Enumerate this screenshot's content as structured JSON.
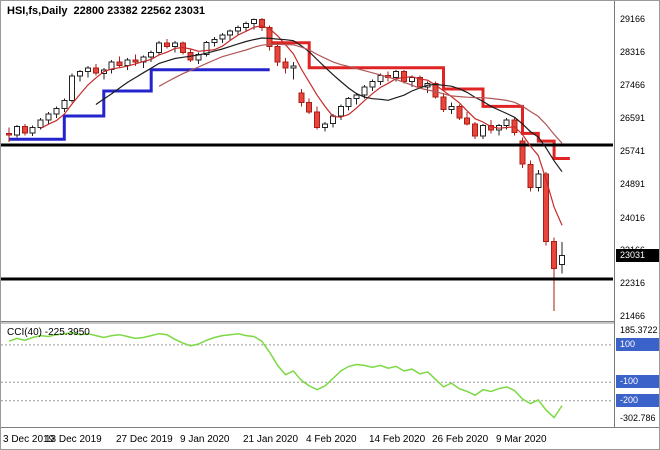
{
  "header": {
    "symbol": "HSI,fs,Daily",
    "ohlc": "22800 23382 22562 23031"
  },
  "price_axis": {
    "labels": [
      29166,
      28316,
      27466,
      26591,
      25741,
      24891,
      24016,
      23166,
      22316,
      21466
    ],
    "current_price": "23031"
  },
  "time_axis": {
    "labels": [
      {
        "i": 0,
        "text": "3 Dec 2019"
      },
      {
        "i": 8,
        "text": "13 Dec 2019"
      },
      {
        "i": 17,
        "text": "27 Dec 2019"
      },
      {
        "i": 25,
        "text": "9 Jan 2020"
      },
      {
        "i": 33,
        "text": "21 Jan 2020"
      },
      {
        "i": 41,
        "text": "4 Feb 2020"
      },
      {
        "i": 49,
        "text": "14 Feb 2020"
      },
      {
        "i": 57,
        "text": "26 Feb 2020"
      },
      {
        "i": 65,
        "text": "9 Mar 2020"
      }
    ]
  },
  "cci": {
    "label": "CCI(40) -225.3950",
    "max": 185.3722,
    "min": -302.786,
    "max_label": "185.3722",
    "min_label": "-302.786",
    "levels": [
      {
        "value": 100,
        "label": "100"
      },
      {
        "value": -100,
        "label": "-100"
      },
      {
        "value": -200,
        "label": "-200"
      }
    ]
  },
  "chart_data": {
    "type": "candlestick",
    "title": "HSI,fs,Daily",
    "ylim": [
      21466,
      29166
    ],
    "candles": [
      [
        26200,
        26350,
        25980,
        26160
      ],
      [
        26160,
        26420,
        26100,
        26380
      ],
      [
        26380,
        26450,
        26150,
        26210
      ],
      [
        26210,
        26400,
        26130,
        26350
      ],
      [
        26350,
        26600,
        26300,
        26550
      ],
      [
        26550,
        26750,
        26450,
        26700
      ],
      [
        26700,
        26900,
        26600,
        26850
      ],
      [
        26850,
        27100,
        26750,
        27050
      ],
      [
        27050,
        27750,
        27000,
        27690
      ],
      [
        27690,
        27850,
        27550,
        27800
      ],
      [
        27800,
        27950,
        27650,
        27900
      ],
      [
        27900,
        28000,
        27700,
        27760
      ],
      [
        27760,
        27900,
        27600,
        27850
      ],
      [
        27850,
        28100,
        27750,
        28050
      ],
      [
        28050,
        28200,
        27900,
        27960
      ],
      [
        27960,
        28150,
        27850,
        28100
      ],
      [
        28100,
        28250,
        27950,
        28050
      ],
      [
        28050,
        28220,
        27900,
        28180
      ],
      [
        28180,
        28350,
        28050,
        28300
      ],
      [
        28300,
        28600,
        28250,
        28550
      ],
      [
        28550,
        28650,
        28400,
        28450
      ],
      [
        28450,
        28600,
        28300,
        28540
      ],
      [
        28540,
        28580,
        28250,
        28300
      ],
      [
        28300,
        28400,
        28050,
        28100
      ],
      [
        28100,
        28300,
        28000,
        28250
      ],
      [
        28250,
        28600,
        28200,
        28560
      ],
      [
        28560,
        28700,
        28450,
        28640
      ],
      [
        28640,
        28800,
        28550,
        28750
      ],
      [
        28750,
        28900,
        28600,
        28850
      ],
      [
        28850,
        29000,
        28750,
        28950
      ],
      [
        28950,
        29100,
        28850,
        29050
      ],
      [
        29050,
        29180,
        28900,
        29150
      ],
      [
        29150,
        29190,
        28850,
        28950
      ],
      [
        28950,
        29000,
        28350,
        28450
      ],
      [
        28450,
        28550,
        27950,
        28050
      ],
      [
        28050,
        28150,
        27750,
        27900
      ],
      [
        27900,
        28050,
        27600,
        27950
      ],
      [
        27250,
        27350,
        26900,
        27000
      ],
      [
        27000,
        27100,
        26700,
        26750
      ],
      [
        26750,
        26900,
        26300,
        26350
      ],
      [
        26350,
        26500,
        26250,
        26450
      ],
      [
        26450,
        26700,
        26350,
        26650
      ],
      [
        26650,
        26950,
        26550,
        26900
      ],
      [
        26900,
        27150,
        26800,
        27100
      ],
      [
        27100,
        27250,
        26950,
        27200
      ],
      [
        27200,
        27450,
        27100,
        27400
      ],
      [
        27400,
        27600,
        27300,
        27550
      ],
      [
        27550,
        27750,
        27450,
        27700
      ],
      [
        27700,
        27800,
        27550,
        27650
      ],
      [
        27650,
        27850,
        27550,
        27800
      ],
      [
        27800,
        27850,
        27500,
        27550
      ],
      [
        27550,
        27700,
        27400,
        27650
      ],
      [
        27650,
        27700,
        27350,
        27400
      ],
      [
        27400,
        27550,
        27250,
        27500
      ],
      [
        27500,
        27550,
        27100,
        27150
      ],
      [
        27150,
        27250,
        26750,
        26820
      ],
      [
        26820,
        27000,
        26700,
        26900
      ],
      [
        26900,
        26950,
        26550,
        26600
      ],
      [
        26600,
        26750,
        26400,
        26450
      ],
      [
        26450,
        26500,
        26050,
        26130
      ],
      [
        26130,
        26450,
        26050,
        26400
      ],
      [
        26400,
        26550,
        26200,
        26290
      ],
      [
        26290,
        26450,
        26150,
        26400
      ],
      [
        26400,
        26600,
        26300,
        26550
      ],
      [
        26550,
        26600,
        26150,
        26220
      ],
      [
        26000,
        26100,
        25300,
        25400
      ],
      [
        25400,
        25500,
        24700,
        24800
      ],
      [
        24800,
        25250,
        24700,
        25150
      ],
      [
        25150,
        25200,
        23300,
        23400
      ],
      [
        23400,
        23500,
        21600,
        22700
      ],
      [
        22800,
        23382,
        22562,
        23031
      ]
    ],
    "moving_averages": [
      {
        "period": 5,
        "color": "#c82a2a"
      },
      {
        "period": 12,
        "color": "#1c1c1c"
      },
      {
        "period": 20,
        "color": "#b05656"
      }
    ],
    "step_lines": [
      {
        "color": "#2424cc",
        "segments": [
          [
            0,
            7,
            26050
          ],
          [
            7,
            12,
            26650
          ],
          [
            12,
            18,
            27300
          ],
          [
            18,
            33,
            27850
          ]
        ]
      },
      {
        "color": "#e02424",
        "segments": [
          [
            33,
            38,
            28550
          ],
          [
            38,
            55,
            27900
          ],
          [
            55,
            60,
            27350
          ],
          [
            60,
            65,
            26900
          ],
          [
            65,
            67,
            26200
          ],
          [
            67,
            69,
            26000
          ],
          [
            69,
            71,
            25550
          ]
        ]
      }
    ],
    "support_lines": [
      25900,
      22420
    ],
    "indicator": {
      "name": "CCI",
      "period": 40,
      "current": -225.395,
      "values": [
        120,
        135,
        125,
        140,
        150,
        145,
        155,
        160,
        165,
        155,
        160,
        150,
        140,
        150,
        155,
        145,
        135,
        140,
        150,
        160,
        155,
        130,
        110,
        95,
        105,
        125,
        140,
        150,
        155,
        160,
        150,
        145,
        120,
        60,
        -10,
        -60,
        -40,
        -90,
        -120,
        -140,
        -120,
        -80,
        -40,
        -15,
        -5,
        -10,
        -20,
        -10,
        -25,
        -15,
        -40,
        -30,
        -55,
        -45,
        -85,
        -125,
        -105,
        -135,
        -150,
        -170,
        -140,
        -150,
        -135,
        -125,
        -145,
        -190,
        -215,
        -195,
        -250,
        -290,
        -225.395
      ]
    },
    "colors": {
      "bull_fill": "#ffffff",
      "bull_stroke": "#222222",
      "bear_fill": "#e8463c",
      "bear_stroke": "#a81e16",
      "support": "#000000",
      "cci_line": "#7cd944",
      "cci_level_line": "#9a9a9a",
      "price_badge_bg": "#000000",
      "cci_badge_bg": "#3a62c8"
    }
  }
}
